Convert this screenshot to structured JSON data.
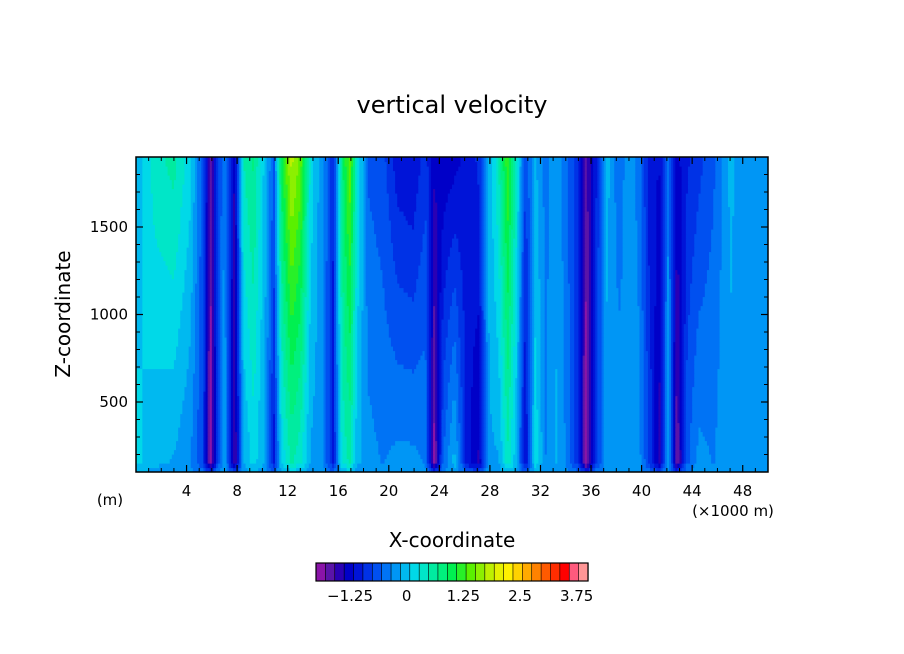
{
  "chart_data": {
    "type": "heatmap",
    "title": "vertical velocity",
    "xlabel": "X-coordinate",
    "ylabel": "Z-coordinate",
    "x_unit_left": "(m)",
    "x_unit_right": "(×1000 m)",
    "xlim": [
      0,
      50
    ],
    "ylim": [
      100,
      1900
    ],
    "x_ticks": [
      4,
      8,
      12,
      16,
      20,
      24,
      28,
      32,
      36,
      40,
      44,
      48
    ],
    "y_ticks": [
      500,
      1000,
      1500
    ],
    "colorbar": {
      "min": -2.0,
      "max": 4.0,
      "step": 0.25,
      "tick_values": [
        -1.25,
        0,
        1.25,
        2.5,
        3.75
      ],
      "tick_labels": [
        "−1.25",
        "0",
        "1.25",
        "2.5",
        "3.75"
      ],
      "colors": [
        "#8a14a8",
        "#5a14a8",
        "#2a00b4",
        "#0000c8",
        "#0014d8",
        "#0032e6",
        "#0050f0",
        "#0073f5",
        "#0096f5",
        "#00b9f0",
        "#00d9e8",
        "#00e6c8",
        "#00eba0",
        "#00f07d",
        "#00f050",
        "#28f028",
        "#5af000",
        "#8cf000",
        "#bef000",
        "#e6f000",
        "#fff000",
        "#ffd200",
        "#ffaa00",
        "#ff8200",
        "#ff5a00",
        "#ff2d00",
        "#ff0000",
        "#ff5a7d",
        "#ff9696"
      ]
    },
    "base_value": 0.1,
    "columns": [
      {
        "x": 0.0,
        "bottom": 0.6,
        "top": 0.3
      },
      {
        "x": 1.5,
        "bottom": 0.3,
        "top": 0.9
      },
      {
        "x": 3.0,
        "bottom": 0.2,
        "top": 1.1
      },
      {
        "x": 4.3,
        "bottom": 0.0,
        "top": 0.6
      },
      {
        "x": 5.3,
        "bottom": -0.5,
        "top": -0.4
      },
      {
        "x": 5.9,
        "bottom": -2.0,
        "top": -1.6
      },
      {
        "x": 6.4,
        "bottom": -0.6,
        "top": -0.7
      },
      {
        "x": 7.0,
        "bottom": 0.3,
        "top": 0.0
      },
      {
        "x": 7.8,
        "bottom": -1.6,
        "top": -1.3
      },
      {
        "x": 8.5,
        "bottom": 0.2,
        "top": 1.0
      },
      {
        "x": 9.3,
        "bottom": 0.6,
        "top": 1.3
      },
      {
        "x": 10.2,
        "bottom": 0.2,
        "top": 0.4
      },
      {
        "x": 10.9,
        "bottom": -0.9,
        "top": -0.3
      },
      {
        "x": 11.5,
        "bottom": 0.5,
        "top": 1.6
      },
      {
        "x": 12.3,
        "bottom": 1.0,
        "top": 2.6
      },
      {
        "x": 13.0,
        "bottom": 0.8,
        "top": 2.2
      },
      {
        "x": 13.8,
        "bottom": 0.2,
        "top": 0.7
      },
      {
        "x": 14.8,
        "bottom": 0.1,
        "top": 0.0
      },
      {
        "x": 15.6,
        "bottom": -0.9,
        "top": -0.7
      },
      {
        "x": 16.3,
        "bottom": 0.8,
        "top": 1.4
      },
      {
        "x": 16.9,
        "bottom": 1.0,
        "top": 2.2
      },
      {
        "x": 17.5,
        "bottom": 0.3,
        "top": 0.8
      },
      {
        "x": 18.4,
        "bottom": 0.1,
        "top": -0.3
      },
      {
        "x": 19.5,
        "bottom": 0.0,
        "top": -0.4
      },
      {
        "x": 20.7,
        "bottom": 0.1,
        "top": -0.9
      },
      {
        "x": 21.9,
        "bottom": 0.1,
        "top": -1.0
      },
      {
        "x": 22.9,
        "bottom": 0.0,
        "top": -0.6
      },
      {
        "x": 23.6,
        "bottom": -1.9,
        "top": -1.2
      },
      {
        "x": 24.3,
        "bottom": -0.2,
        "top": -1.2
      },
      {
        "x": 25.2,
        "bottom": 0.4,
        "top": -1.1
      },
      {
        "x": 26.2,
        "bottom": -0.9,
        "top": -0.9
      },
      {
        "x": 27.1,
        "bottom": -1.3,
        "top": -0.7
      },
      {
        "x": 27.9,
        "bottom": 0.2,
        "top": 0.3
      },
      {
        "x": 28.7,
        "bottom": 0.2,
        "top": 1.0
      },
      {
        "x": 29.4,
        "bottom": 0.9,
        "top": 2.0
      },
      {
        "x": 30.1,
        "bottom": 0.3,
        "top": 0.9
      },
      {
        "x": 30.8,
        "bottom": -1.1,
        "top": -0.5
      },
      {
        "x": 31.6,
        "bottom": 0.7,
        "top": 0.3
      },
      {
        "x": 32.4,
        "bottom": 0.0,
        "top": -0.1
      },
      {
        "x": 33.3,
        "bottom": 0.3,
        "top": 0.2
      },
      {
        "x": 34.2,
        "bottom": -0.1,
        "top": -0.3
      },
      {
        "x": 35.0,
        "bottom": -0.7,
        "top": -0.7
      },
      {
        "x": 35.6,
        "bottom": -2.0,
        "top": -1.6
      },
      {
        "x": 36.4,
        "bottom": -0.6,
        "top": -0.8
      },
      {
        "x": 37.2,
        "bottom": 0.1,
        "top": 0.4
      },
      {
        "x": 38.2,
        "bottom": 0.2,
        "top": -0.2
      },
      {
        "x": 39.0,
        "bottom": 0.0,
        "top": 0.2
      },
      {
        "x": 39.8,
        "bottom": 0.1,
        "top": -0.1
      },
      {
        "x": 40.6,
        "bottom": -0.5,
        "top": -0.9
      },
      {
        "x": 41.4,
        "bottom": -1.4,
        "top": -1.0
      },
      {
        "x": 42.1,
        "bottom": 0.3,
        "top": -0.1
      },
      {
        "x": 42.8,
        "bottom": -1.8,
        "top": -1.1
      },
      {
        "x": 43.6,
        "bottom": -0.3,
        "top": -0.8
      },
      {
        "x": 44.5,
        "bottom": 0.1,
        "top": -0.6
      },
      {
        "x": 45.7,
        "bottom": 0.0,
        "top": -0.3
      },
      {
        "x": 47.0,
        "bottom": 0.2,
        "top": 0.3
      },
      {
        "x": 48.3,
        "bottom": 0.2,
        "top": 0.1
      },
      {
        "x": 50.0,
        "bottom": 0.1,
        "top": 0.0
      }
    ]
  }
}
